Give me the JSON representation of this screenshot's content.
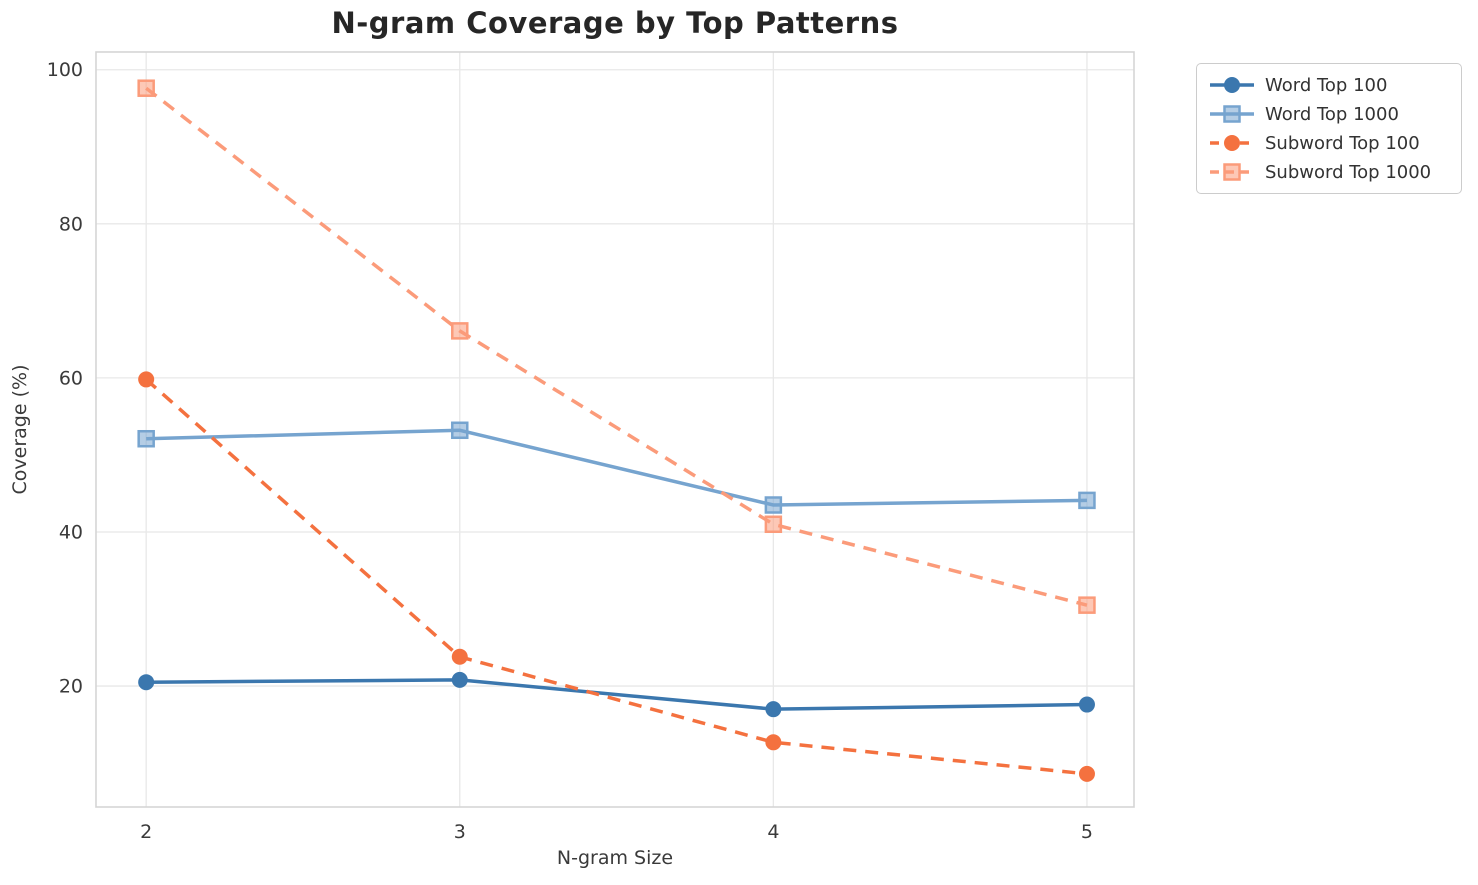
{
  "title": "N-gram Coverage by Top Patterns",
  "chart_data": {
    "type": "line",
    "title": "N-gram Coverage by Top Patterns",
    "xlabel": "N-gram Size",
    "ylabel": "Coverage (%)",
    "x": [
      2,
      3,
      4,
      5
    ],
    "x_ticks": [
      "2",
      "3",
      "4",
      "5"
    ],
    "y_ticks": [
      20,
      40,
      60,
      80,
      100
    ],
    "xlim": [
      1.84,
      5.15
    ],
    "ylim": [
      4.3,
      102.3
    ],
    "grid": true,
    "legend_position": "outside-top-right",
    "series": [
      {
        "name": "Word Top 100",
        "values": [
          20.5,
          20.8,
          17.0,
          17.6
        ],
        "color": "#3b77ae",
        "marker": "circle",
        "dash": "solid"
      },
      {
        "name": "Word Top 1000",
        "values": [
          52.1,
          53.2,
          43.5,
          44.1
        ],
        "color": "#76a4cf",
        "marker": "square",
        "dash": "solid"
      },
      {
        "name": "Subword Top 100",
        "values": [
          59.8,
          23.8,
          12.7,
          8.6
        ],
        "color": "#f4713f",
        "marker": "circle",
        "dash": "dashed"
      },
      {
        "name": "Subword Top 1000",
        "values": [
          97.6,
          66.1,
          41.0,
          30.5
        ],
        "color": "#fb9b7a",
        "marker": "square",
        "dash": "dashed"
      }
    ]
  },
  "colors": {
    "grid": "#e8e8e8",
    "spine": "#d5d5d5",
    "tick_text": "#3a3a3a",
    "axis_label_text": "#3a3a3a",
    "title_text": "#262626",
    "legend_border": "#cccccc",
    "background": "#ffffff"
  }
}
